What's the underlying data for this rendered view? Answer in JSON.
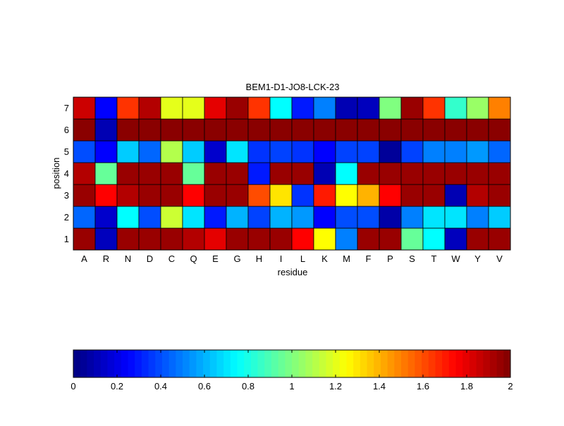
{
  "chart_data": {
    "type": "heatmap",
    "title": "BEM1-D1-JO8-LCK-23",
    "xlabel": "residue",
    "ylabel": "position",
    "x_categories": [
      "A",
      "R",
      "N",
      "D",
      "C",
      "Q",
      "E",
      "G",
      "H",
      "I",
      "L",
      "K",
      "M",
      "F",
      "P",
      "S",
      "T",
      "W",
      "Y",
      "V"
    ],
    "y_categories": [
      "1",
      "2",
      "3",
      "4",
      "5",
      "6",
      "7"
    ],
    "colormap": "jet",
    "color_range": [
      0,
      2
    ],
    "colorbar": {
      "placement": "bottom",
      "ticks": [
        0,
        0.2,
        0.4,
        0.6,
        0.8,
        1,
        1.2,
        1.4,
        1.6,
        1.8,
        2
      ],
      "tick_labels": [
        "0",
        "0.2",
        "0.4",
        "0.6",
        "0.8",
        "1",
        "1.2",
        "1.4",
        "1.6",
        "1.8",
        "2"
      ]
    },
    "values": [
      [
        1.95,
        0.12,
        1.95,
        1.95,
        1.95,
        1.9,
        1.8,
        1.95,
        1.95,
        1.95,
        1.75,
        1.25,
        0.5,
        1.95,
        1.95,
        0.95,
        0.75,
        0.12,
        1.95,
        1.95
      ],
      [
        0.45,
        0.15,
        0.75,
        0.4,
        1.15,
        0.7,
        0.3,
        0.6,
        0.38,
        0.6,
        0.55,
        0.25,
        0.4,
        0.4,
        0.08,
        0.5,
        0.7,
        0.7,
        0.5,
        0.65
      ],
      [
        1.95,
        1.75,
        1.9,
        1.95,
        1.95,
        1.75,
        1.95,
        1.95,
        1.6,
        1.3,
        0.35,
        1.7,
        1.25,
        1.4,
        1.75,
        1.95,
        1.95,
        0.1,
        1.9,
        1.95
      ],
      [
        1.9,
        0.95,
        1.95,
        1.95,
        1.95,
        0.95,
        1.95,
        1.95,
        0.3,
        1.95,
        1.95,
        0.1,
        0.75,
        1.95,
        1.95,
        1.95,
        1.95,
        1.95,
        1.95,
        1.95
      ],
      [
        0.4,
        0.25,
        0.65,
        0.45,
        1.1,
        0.65,
        0.15,
        0.7,
        0.35,
        0.38,
        0.35,
        0.25,
        0.38,
        0.38,
        0.05,
        0.38,
        0.5,
        0.5,
        0.55,
        0.45
      ],
      [
        1.98,
        0.1,
        1.98,
        1.98,
        1.98,
        1.98,
        1.98,
        1.98,
        1.98,
        1.98,
        1.98,
        1.98,
        1.98,
        1.98,
        1.98,
        1.98,
        1.98,
        1.98,
        1.98,
        1.98
      ],
      [
        1.85,
        0.25,
        1.65,
        1.9,
        1.2,
        1.2,
        1.8,
        1.95,
        1.65,
        0.75,
        0.3,
        0.5,
        0.1,
        0.12,
        1.0,
        1.95,
        1.65,
        0.85,
        1.05,
        1.5
      ]
    ]
  }
}
